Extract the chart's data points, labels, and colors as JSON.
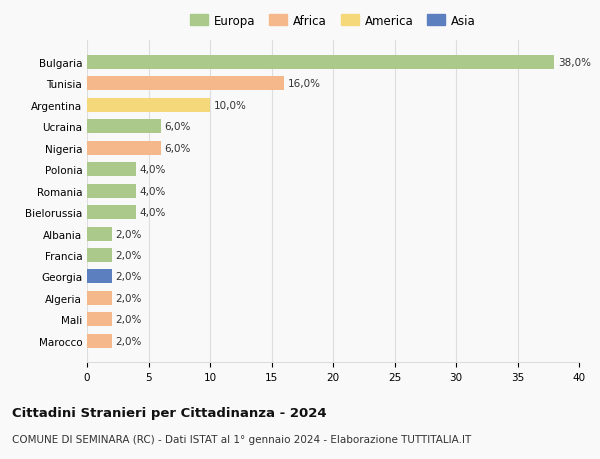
{
  "countries": [
    "Bulgaria",
    "Tunisia",
    "Argentina",
    "Ucraina",
    "Nigeria",
    "Polonia",
    "Romania",
    "Bielorussia",
    "Albania",
    "Francia",
    "Georgia",
    "Algeria",
    "Mali",
    "Marocco"
  ],
  "values": [
    38.0,
    16.0,
    10.0,
    6.0,
    6.0,
    4.0,
    4.0,
    4.0,
    2.0,
    2.0,
    2.0,
    2.0,
    2.0,
    2.0
  ],
  "continents": [
    "Europa",
    "Africa",
    "America",
    "Europa",
    "Africa",
    "Europa",
    "Europa",
    "Europa",
    "Europa",
    "Europa",
    "Asia",
    "Africa",
    "Africa",
    "Africa"
  ],
  "continent_colors": {
    "Europa": "#aac98a",
    "Africa": "#f5b88a",
    "America": "#f5d87a",
    "Asia": "#5b7fbf"
  },
  "legend_order": [
    "Europa",
    "Africa",
    "America",
    "Asia"
  ],
  "title": "Cittadini Stranieri per Cittadinanza - 2024",
  "subtitle": "COMUNE DI SEMINARA (RC) - Dati ISTAT al 1° gennaio 2024 - Elaborazione TUTTITALIA.IT",
  "xlim": [
    0,
    40
  ],
  "xticks": [
    0,
    5,
    10,
    15,
    20,
    25,
    30,
    35,
    40
  ],
  "bg_color": "#f9f9f9",
  "grid_color": "#dddddd"
}
